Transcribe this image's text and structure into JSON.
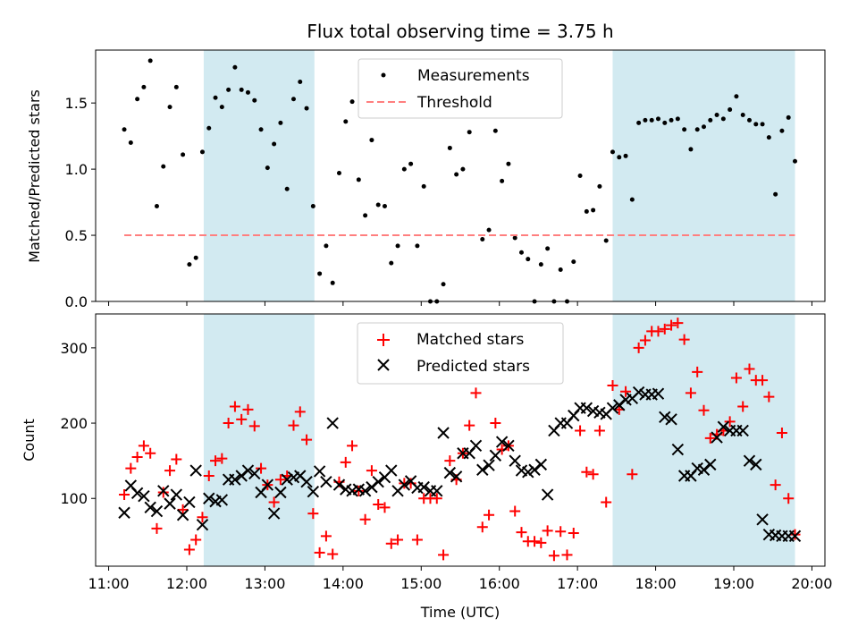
{
  "chart_data": [
    {
      "type": "scatter",
      "title": "Flux total observing time = 3.75 h",
      "xlabel": "",
      "ylabel": "Matched/Predicted stars",
      "ylim": [
        0,
        1.9
      ],
      "xlim": [
        "11:00",
        "20:00"
      ],
      "yticks": [
        "0.0",
        "0.5",
        "1.0",
        "1.5"
      ],
      "grid": false,
      "legend_position": "top-center",
      "shaded_intervals": [
        [
          "12:13",
          "13:38"
        ],
        [
          "17:27",
          "19:47"
        ]
      ],
      "shade_color": "#add8e6",
      "series": [
        {
          "name": "Measurements",
          "color": "#000000",
          "marker": "dot",
          "x": [
            "11:12",
            "11:17",
            "11:22",
            "11:27",
            "11:32",
            "11:37",
            "11:42",
            "11:47",
            "11:52",
            "11:57",
            "12:02",
            "12:07",
            "12:12",
            "12:17",
            "12:22",
            "12:27",
            "12:32",
            "12:37",
            "12:42",
            "12:47",
            "12:52",
            "12:57",
            "13:02",
            "13:07",
            "13:12",
            "13:17",
            "13:22",
            "13:27",
            "13:32",
            "13:37",
            "13:42",
            "13:47",
            "13:52",
            "13:57",
            "14:02",
            "14:07",
            "14:12",
            "14:17",
            "14:22",
            "14:27",
            "14:32",
            "14:37",
            "14:42",
            "14:47",
            "14:52",
            "14:57",
            "15:02",
            "15:07",
            "15:12",
            "15:17",
            "15:22",
            "15:27",
            "15:32",
            "15:37",
            "15:42",
            "15:47",
            "15:52",
            "15:57",
            "16:02",
            "16:07",
            "16:12",
            "16:17",
            "16:22",
            "16:27",
            "16:32",
            "16:37",
            "16:42",
            "16:47",
            "16:52",
            "16:57",
            "17:02",
            "17:07",
            "17:12",
            "17:17",
            "17:22",
            "17:27",
            "17:32",
            "17:37",
            "17:42",
            "17:47",
            "17:52",
            "17:57",
            "18:02",
            "18:07",
            "18:12",
            "18:17",
            "18:22",
            "18:27",
            "18:32",
            "18:37",
            "18:42",
            "18:47",
            "18:52",
            "18:57",
            "19:02",
            "19:07",
            "19:12",
            "19:17",
            "19:22",
            "19:27",
            "19:32",
            "19:37",
            "19:42",
            "19:47"
          ],
          "y": [
            1.3,
            1.2,
            1.53,
            1.62,
            1.82,
            0.72,
            1.02,
            1.47,
            1.62,
            1.11,
            0.28,
            0.33,
            1.13,
            1.31,
            1.54,
            1.47,
            1.6,
            1.77,
            1.6,
            1.58,
            1.52,
            1.3,
            1.01,
            1.19,
            1.35,
            0.85,
            1.53,
            1.66,
            1.46,
            0.72,
            0.21,
            0.42,
            0.14,
            0.97,
            1.36,
            1.51,
            0.92,
            0.65,
            1.22,
            0.73,
            0.72,
            0.29,
            0.42,
            1.0,
            1.04,
            0.42,
            0.87,
            0.0,
            0.0,
            0.13,
            1.16,
            0.96,
            1.0,
            1.28,
            1.52,
            0.47,
            0.54,
            1.29,
            0.91,
            1.04,
            0.48,
            0.37,
            0.32,
            0.0,
            0.28,
            0.4,
            0.0,
            0.24,
            0.0,
            0.3,
            0.95,
            0.68,
            0.69,
            0.87,
            0.46,
            1.13,
            1.09,
            1.1,
            0.77,
            1.35,
            1.37,
            1.37,
            1.38,
            1.35,
            1.37,
            1.38,
            1.3,
            1.15,
            1.3,
            1.32,
            1.37,
            1.41,
            1.38,
            1.45,
            1.55,
            1.41,
            1.37,
            1.34,
            1.34,
            1.24,
            0.81,
            1.29,
            1.39,
            1.06
          ]
        },
        {
          "name": "Threshold",
          "color": "#ff7f7f",
          "style": "dashed",
          "x": [
            "11:12",
            "19:47"
          ],
          "y": [
            0.5,
            0.5
          ]
        }
      ]
    },
    {
      "type": "scatter",
      "title": "",
      "xlabel": "Time (UTC)",
      "ylabel": "Count",
      "ylim": [
        10,
        345
      ],
      "xlim": [
        "11:00",
        "20:00"
      ],
      "xticks": [
        "11:00",
        "12:00",
        "13:00",
        "14:00",
        "15:00",
        "16:00",
        "17:00",
        "18:00",
        "19:00",
        "20:00"
      ],
      "yticks": [
        "100",
        "200",
        "300"
      ],
      "grid": false,
      "legend_position": "top-center",
      "shaded_intervals": [
        [
          "12:13",
          "13:38"
        ],
        [
          "17:27",
          "19:47"
        ]
      ],
      "shade_color": "#add8e6",
      "series": [
        {
          "name": "Matched stars",
          "color": "#ff0000",
          "marker": "plus",
          "x": [
            "11:12",
            "11:17",
            "11:22",
            "11:27",
            "11:32",
            "11:37",
            "11:42",
            "11:47",
            "11:52",
            "11:57",
            "12:02",
            "12:07",
            "12:12",
            "12:17",
            "12:22",
            "12:27",
            "12:32",
            "12:37",
            "12:42",
            "12:47",
            "12:52",
            "12:57",
            "13:02",
            "13:07",
            "13:12",
            "13:17",
            "13:22",
            "13:27",
            "13:32",
            "13:37",
            "13:42",
            "13:47",
            "13:52",
            "13:57",
            "14:02",
            "14:07",
            "14:12",
            "14:17",
            "14:22",
            "14:27",
            "14:32",
            "14:37",
            "14:42",
            "14:47",
            "14:52",
            "14:57",
            "15:02",
            "15:07",
            "15:12",
            "15:17",
            "15:22",
            "15:27",
            "15:32",
            "15:37",
            "15:42",
            "15:47",
            "15:52",
            "15:57",
            "16:02",
            "16:07",
            "16:12",
            "16:17",
            "16:22",
            "16:27",
            "16:32",
            "16:37",
            "16:42",
            "16:47",
            "16:52",
            "16:57",
            "17:02",
            "17:07",
            "17:12",
            "17:17",
            "17:22",
            "17:27",
            "17:32",
            "17:37",
            "17:42",
            "17:47",
            "17:52",
            "17:57",
            "18:02",
            "18:07",
            "18:12",
            "18:17",
            "18:22",
            "18:27",
            "18:32",
            "18:37",
            "18:42",
            "18:47",
            "18:52",
            "18:57",
            "19:02",
            "19:07",
            "19:12",
            "19:17",
            "19:22",
            "19:27",
            "19:32",
            "19:37",
            "19:42",
            "19:47"
          ],
          "y": [
            105,
            140,
            155,
            170,
            160,
            60,
            108,
            137,
            152,
            85,
            32,
            45,
            75,
            130,
            150,
            153,
            200,
            222,
            205,
            218,
            196,
            140,
            118,
            95,
            125,
            130,
            197,
            215,
            178,
            80,
            28,
            50,
            26,
            122,
            148,
            170,
            110,
            72,
            137,
            92,
            88,
            40,
            45,
            120,
            120,
            45,
            100,
            100,
            100,
            25,
            150,
            125,
            160,
            197,
            240,
            62,
            78,
            200,
            165,
            170,
            83,
            55,
            43,
            43,
            41,
            57,
            24,
            56,
            25,
            54,
            190,
            135,
            132,
            190,
            95,
            250,
            218,
            242,
            132,
            300,
            310,
            322,
            322,
            325,
            330,
            333,
            311,
            240,
            268,
            217,
            180,
            185,
            190,
            202,
            260,
            222,
            272,
            257,
            257,
            235,
            118,
            187,
            100,
            52
          ]
        },
        {
          "name": "Predicted stars",
          "color": "#000000",
          "marker": "x",
          "x": [
            "11:12",
            "11:17",
            "11:22",
            "11:27",
            "11:32",
            "11:37",
            "11:42",
            "11:47",
            "11:52",
            "11:57",
            "12:02",
            "12:07",
            "12:12",
            "12:17",
            "12:22",
            "12:27",
            "12:32",
            "12:37",
            "12:42",
            "12:47",
            "12:52",
            "12:57",
            "13:02",
            "13:07",
            "13:12",
            "13:17",
            "13:22",
            "13:27",
            "13:32",
            "13:37",
            "13:42",
            "13:47",
            "13:52",
            "13:57",
            "14:02",
            "14:07",
            "14:12",
            "14:17",
            "14:22",
            "14:27",
            "14:32",
            "14:37",
            "14:42",
            "14:47",
            "14:52",
            "14:57",
            "15:02",
            "15:07",
            "15:12",
            "15:17",
            "15:22",
            "15:27",
            "15:32",
            "15:37",
            "15:42",
            "15:47",
            "15:52",
            "15:57",
            "16:02",
            "16:07",
            "16:12",
            "16:17",
            "16:22",
            "16:27",
            "16:32",
            "16:37",
            "16:42",
            "16:47",
            "16:52",
            "16:57",
            "17:02",
            "17:07",
            "17:12",
            "17:17",
            "17:22",
            "17:27",
            "17:32",
            "17:37",
            "17:42",
            "17:47",
            "17:52",
            "17:57",
            "18:02",
            "18:07",
            "18:12",
            "18:17",
            "18:22",
            "18:27",
            "18:32",
            "18:37",
            "18:42",
            "18:47",
            "18:52",
            "18:57",
            "19:02",
            "19:07",
            "19:12",
            "19:17",
            "19:22",
            "19:27",
            "19:32",
            "19:37",
            "19:42",
            "19:47"
          ],
          "y": [
            81,
            117,
            107,
            103,
            88,
            83,
            110,
            93,
            105,
            78,
            95,
            137,
            65,
            100,
            96,
            98,
            125,
            125,
            130,
            137,
            133,
            108,
            118,
            80,
            108,
            125,
            128,
            130,
            122,
            109,
            136,
            122,
            200,
            118,
            112,
            110,
            112,
            110,
            115,
            122,
            128,
            137,
            110,
            118,
            123,
            114,
            115,
            110,
            110,
            187,
            134,
            129,
            160,
            160,
            170,
            138,
            144,
            157,
            175,
            170,
            150,
            137,
            135,
            138,
            145,
            105,
            190,
            200,
            200,
            210,
            220,
            220,
            216,
            214,
            212,
            220,
            224,
            231,
            233,
            241,
            238,
            238,
            239,
            208,
            205,
            165,
            130,
            130,
            140,
            138,
            145,
            181,
            195,
            190,
            190,
            190,
            150,
            145,
            72,
            52,
            51,
            50,
            50,
            50
          ]
        }
      ]
    }
  ]
}
